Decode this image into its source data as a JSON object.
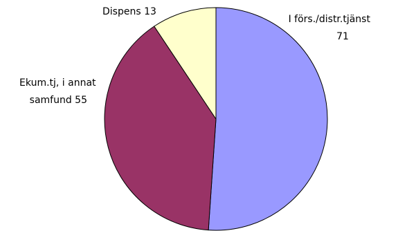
{
  "chart_data": {
    "type": "pie",
    "title": "",
    "slices": [
      {
        "label": "I förs./distr.tjänst 71",
        "value": 71,
        "color": "#9999FF"
      },
      {
        "label": "Ekum.tj, i annat samfund 55",
        "value": 55,
        "color": "#993366"
      },
      {
        "label": "Dispens 13",
        "value": 13,
        "color": "#FFFFCC"
      }
    ],
    "label_lines": [
      [
        "I förs./distr.tjänst",
        "71"
      ],
      [
        "Ekum.tj, i annat",
        "samfund 55"
      ],
      [
        "Dispens 13"
      ]
    ],
    "start": "12 o'clock",
    "direction": "clockwise",
    "legend": "none"
  }
}
